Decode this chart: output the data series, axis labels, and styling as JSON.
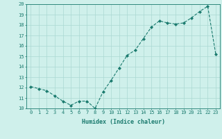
{
  "x": [
    0,
    1,
    2,
    3,
    4,
    5,
    6,
    7,
    8,
    9,
    10,
    11,
    12,
    13,
    14,
    15,
    16,
    17,
    18,
    19,
    20,
    21,
    22,
    23
  ],
  "y": [
    12.1,
    11.9,
    11.7,
    11.2,
    10.7,
    10.3,
    10.7,
    10.7,
    10.0,
    11.6,
    12.7,
    13.9,
    15.1,
    15.6,
    16.7,
    17.8,
    18.4,
    18.2,
    18.1,
    18.2,
    18.7,
    19.3,
    19.8,
    15.2
  ],
  "xlim": [
    -0.5,
    23.5
  ],
  "ylim": [
    10,
    20
  ],
  "yticks": [
    10,
    11,
    12,
    13,
    14,
    15,
    16,
    17,
    18,
    19,
    20
  ],
  "xticks": [
    0,
    1,
    2,
    3,
    4,
    5,
    6,
    7,
    8,
    9,
    10,
    11,
    12,
    13,
    14,
    15,
    16,
    17,
    18,
    19,
    20,
    21,
    22,
    23
  ],
  "xlabel": "Humidex (Indice chaleur)",
  "line_color": "#1a7a6e",
  "marker": "D",
  "marker_size": 2.0,
  "bg_color": "#cff0eb",
  "grid_color": "#aad8d2",
  "label_color": "#1a7a6e",
  "tick_color": "#1a7a6e",
  "spine_color": "#1a7a6e",
  "tick_fontsize": 5.0,
  "xlabel_fontsize": 6.0
}
